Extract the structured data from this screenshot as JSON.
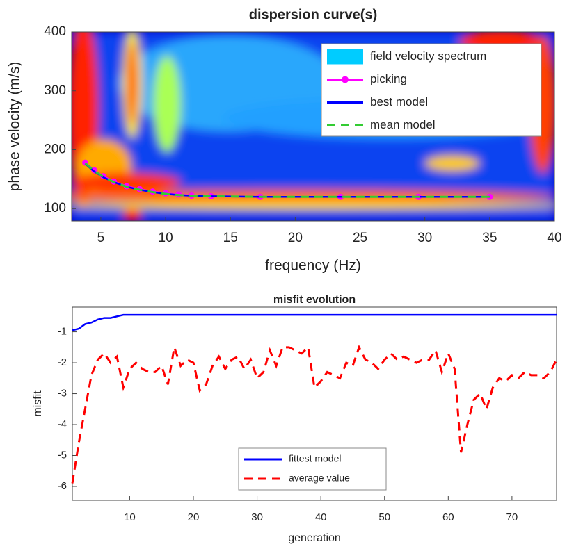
{
  "chart_data": [
    {
      "type": "line",
      "title": "dispersion curve(s)",
      "x_label": "frequency (Hz)",
      "y_label": "phase velocity (m/s)",
      "spectrum": {
        "name": "field velocity spectrum",
        "color": "#00ccff"
      },
      "x": [
        3.8,
        4.5,
        5.2,
        6,
        7,
        8,
        9,
        10,
        11,
        12,
        13.5,
        17.3,
        23.5,
        29.5,
        35
      ],
      "series": [
        {
          "name": "picking",
          "color": "#ff00ff",
          "line_style": "-",
          "marker": "o",
          "values": [
            178,
            165,
            155,
            146,
            138,
            133,
            129,
            126,
            124,
            122,
            121,
            120,
            120,
            120,
            120
          ]
        },
        {
          "name": "best model",
          "color": "#0000ff",
          "line_style": "-",
          "values": [
            176,
            163,
            153,
            145,
            137,
            132,
            128,
            125,
            123,
            122,
            121,
            120,
            120,
            120,
            120
          ]
        },
        {
          "name": "mean model",
          "color": "#33cc33",
          "line_style": "--",
          "values": [
            177,
            164,
            154,
            145,
            137,
            132,
            128,
            125,
            123,
            122,
            121,
            120,
            120,
            120,
            120
          ]
        }
      ],
      "xlim": [
        2.75,
        40
      ],
      "xticks": [
        5,
        10,
        15,
        20,
        25,
        30,
        35,
        40
      ],
      "ylim": [
        79,
        400
      ],
      "yticks": [
        100,
        200,
        300,
        400
      ],
      "legend": "upper right"
    },
    {
      "type": "line",
      "title": "misfit evolution",
      "x_label": "generation",
      "y_label": "misfit",
      "x": [
        1,
        2,
        3,
        4,
        5,
        6,
        7,
        8,
        9,
        10,
        11,
        12,
        13,
        14,
        15,
        16,
        17,
        18,
        19,
        20,
        21,
        22,
        23,
        24,
        25,
        26,
        27,
        28,
        29,
        30,
        31,
        32,
        33,
        34,
        35,
        36,
        37,
        38,
        39,
        40,
        41,
        42,
        43,
        44,
        45,
        46,
        47,
        48,
        49,
        50,
        51,
        52,
        53,
        54,
        55,
        56,
        57,
        58,
        59,
        60,
        61,
        62,
        63,
        64,
        65,
        66,
        67,
        68,
        69,
        70,
        71,
        72,
        73,
        74,
        75,
        76,
        77
      ],
      "series": [
        {
          "name": "fittest model",
          "color": "#0000ff",
          "line_style": "-",
          "values": [
            -0.95,
            -0.9,
            -0.75,
            -0.7,
            -0.6,
            -0.55,
            -0.55,
            -0.5,
            -0.45,
            -0.45,
            -0.45,
            -0.45,
            -0.45,
            -0.45,
            -0.45,
            -0.45,
            -0.45,
            -0.45,
            -0.45,
            -0.45,
            -0.45,
            -0.45,
            -0.45,
            -0.45,
            -0.45,
            -0.45,
            -0.45,
            -0.45,
            -0.45,
            -0.45,
            -0.45,
            -0.45,
            -0.45,
            -0.45,
            -0.45,
            -0.45,
            -0.45,
            -0.45,
            -0.45,
            -0.45,
            -0.45,
            -0.45,
            -0.45,
            -0.45,
            -0.45,
            -0.45,
            -0.45,
            -0.45,
            -0.45,
            -0.45,
            -0.45,
            -0.45,
            -0.45,
            -0.45,
            -0.45,
            -0.45,
            -0.45,
            -0.45,
            -0.45,
            -0.45,
            -0.45,
            -0.45,
            -0.45,
            -0.45,
            -0.45,
            -0.45,
            -0.45,
            -0.45,
            -0.45,
            -0.45,
            -0.45,
            -0.45,
            -0.45,
            -0.45,
            -0.45,
            -0.45,
            -0.45
          ]
        },
        {
          "name": "average value",
          "color": "#ff0000",
          "line_style": "--",
          "values": [
            -5.9,
            -4.6,
            -3.5,
            -2.4,
            -1.9,
            -1.7,
            -2.0,
            -1.8,
            -2.8,
            -2.2,
            -2.0,
            -2.2,
            -2.3,
            -2.3,
            -2.1,
            -2.7,
            -1.5,
            -2.1,
            -1.9,
            -2.0,
            -2.9,
            -2.7,
            -2.1,
            -1.8,
            -2.2,
            -1.9,
            -1.8,
            -2.2,
            -1.9,
            -2.5,
            -2.3,
            -1.6,
            -2.1,
            -1.5,
            -1.5,
            -1.6,
            -1.7,
            -1.5,
            -2.8,
            -2.6,
            -2.3,
            -2.4,
            -2.5,
            -2.0,
            -2.1,
            -1.5,
            -1.9,
            -2.0,
            -2.2,
            -1.9,
            -1.7,
            -1.9,
            -1.8,
            -1.9,
            -2.0,
            -1.9,
            -1.9,
            -1.6,
            -2.3,
            -1.7,
            -2.2,
            -4.9,
            -4.0,
            -3.2,
            -3.0,
            -3.5,
            -2.8,
            -2.5,
            -2.6,
            -2.4,
            -2.5,
            -2.3,
            -2.4,
            -2.4,
            -2.5,
            -2.3,
            -1.9
          ]
        }
      ],
      "xlim": [
        1,
        77
      ],
      "xticks": [
        10,
        20,
        30,
        40,
        50,
        60,
        70
      ],
      "ylim": [
        -6.45,
        -0.2
      ],
      "yticks": [
        -6,
        -5,
        -4,
        -3,
        -2,
        -1
      ],
      "legend": "lower center"
    }
  ]
}
